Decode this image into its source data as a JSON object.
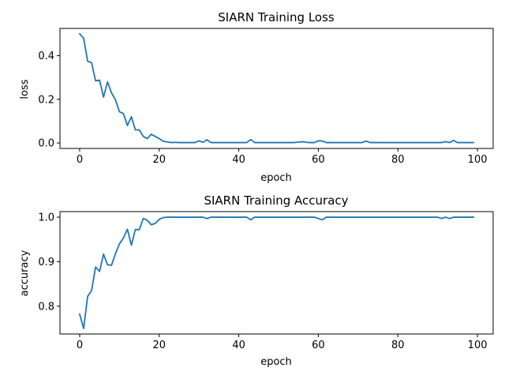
{
  "chart_data": [
    {
      "type": "line",
      "title": "SIARN Training Loss",
      "xlabel": "epoch",
      "ylabel": "loss",
      "xlim": [
        -4.95,
        103.95
      ],
      "ylim": [
        -0.025,
        0.525
      ],
      "xticks": [
        0,
        20,
        40,
        60,
        80,
        100
      ],
      "xtick_labels": [
        "0",
        "20",
        "40",
        "60",
        "80",
        "100"
      ],
      "yticks": [
        0.0,
        0.2,
        0.4
      ],
      "ytick_labels": [
        "0.0",
        "0.2",
        "0.4"
      ],
      "grid": false,
      "series": [
        {
          "color": "#1f77b4",
          "x": [
            0,
            1,
            2,
            3,
            4,
            5,
            6,
            7,
            8,
            9,
            10,
            11,
            12,
            13,
            14,
            15,
            16,
            17,
            18,
            19,
            20,
            21,
            22,
            23,
            24,
            25,
            26,
            27,
            28,
            29,
            30,
            31,
            32,
            33,
            34,
            35,
            36,
            37,
            38,
            39,
            40,
            41,
            42,
            43,
            44,
            45,
            46,
            47,
            48,
            49,
            50,
            51,
            52,
            53,
            54,
            55,
            56,
            57,
            58,
            59,
            60,
            61,
            62,
            63,
            64,
            65,
            66,
            67,
            68,
            69,
            70,
            71,
            72,
            73,
            74,
            75,
            76,
            77,
            78,
            79,
            80,
            81,
            82,
            83,
            84,
            85,
            86,
            87,
            88,
            89,
            90,
            91,
            92,
            93,
            94,
            95,
            96,
            97,
            98,
            99
          ],
          "y": [
            0.5,
            0.48,
            0.375,
            0.368,
            0.285,
            0.288,
            0.21,
            0.28,
            0.23,
            0.198,
            0.143,
            0.135,
            0.08,
            0.12,
            0.06,
            0.06,
            0.03,
            0.02,
            0.04,
            0.03,
            0.02,
            0.008,
            0.005,
            0.002,
            0.003,
            0.002,
            0.002,
            0.002,
            0.002,
            0.002,
            0.01,
            0.003,
            0.015,
            0.002,
            0.002,
            0.002,
            0.002,
            0.002,
            0.002,
            0.002,
            0.002,
            0.002,
            0.002,
            0.016,
            0.002,
            0.002,
            0.002,
            0.002,
            0.002,
            0.002,
            0.002,
            0.002,
            0.002,
            0.002,
            0.002,
            0.004,
            0.006,
            0.003,
            0.002,
            0.002,
            0.01,
            0.009,
            0.002,
            0.002,
            0.002,
            0.002,
            0.002,
            0.002,
            0.002,
            0.002,
            0.002,
            0.002,
            0.009,
            0.002,
            0.002,
            0.002,
            0.002,
            0.002,
            0.002,
            0.002,
            0.002,
            0.002,
            0.002,
            0.002,
            0.002,
            0.002,
            0.002,
            0.002,
            0.002,
            0.002,
            0.002,
            0.002,
            0.006,
            0.002,
            0.012,
            0.002,
            0.002,
            0.002,
            0.002,
            0.002
          ]
        }
      ]
    },
    {
      "type": "line",
      "title": "SIARN Training Accuracy",
      "xlabel": "epoch",
      "ylabel": "accuracy",
      "xlim": [
        -4.95,
        103.95
      ],
      "ylim": [
        0.7375,
        1.0125
      ],
      "xticks": [
        0,
        20,
        40,
        60,
        80,
        100
      ],
      "xtick_labels": [
        "0",
        "20",
        "40",
        "60",
        "80",
        "100"
      ],
      "yticks": [
        0.8,
        0.9,
        1.0
      ],
      "ytick_labels": [
        "0.8",
        "0.9",
        "1.0"
      ],
      "grid": false,
      "series": [
        {
          "color": "#1f77b4",
          "x": [
            0,
            1,
            2,
            3,
            4,
            5,
            6,
            7,
            8,
            9,
            10,
            11,
            12,
            13,
            14,
            15,
            16,
            17,
            18,
            19,
            20,
            21,
            22,
            23,
            24,
            25,
            26,
            27,
            28,
            29,
            30,
            31,
            32,
            33,
            34,
            35,
            36,
            37,
            38,
            39,
            40,
            41,
            42,
            43,
            44,
            45,
            46,
            47,
            48,
            49,
            50,
            51,
            52,
            53,
            54,
            55,
            56,
            57,
            58,
            59,
            60,
            61,
            62,
            63,
            64,
            65,
            66,
            67,
            68,
            69,
            70,
            71,
            72,
            73,
            74,
            75,
            76,
            77,
            78,
            79,
            80,
            81,
            82,
            83,
            84,
            85,
            86,
            87,
            88,
            89,
            90,
            91,
            92,
            93,
            94,
            95,
            96,
            97,
            98,
            99
          ],
          "y": [
            0.782,
            0.75,
            0.822,
            0.835,
            0.888,
            0.878,
            0.917,
            0.893,
            0.892,
            0.918,
            0.94,
            0.953,
            0.973,
            0.937,
            0.972,
            0.972,
            0.997,
            0.993,
            0.983,
            0.986,
            0.995,
            0.999,
            1.0,
            1.0,
            1.0,
            1.0,
            1.0,
            1.0,
            1.0,
            1.0,
            1.0,
            1.0,
            0.997,
            1.0,
            1.0,
            1.0,
            1.0,
            1.0,
            1.0,
            1.0,
            1.0,
            1.0,
            1.0,
            0.994,
            1.0,
            1.0,
            1.0,
            1.0,
            1.0,
            1.0,
            1.0,
            1.0,
            1.0,
            1.0,
            1.0,
            1.0,
            1.0,
            1.0,
            1.0,
            1.0,
            0.997,
            0.994,
            1.0,
            1.0,
            1.0,
            1.0,
            1.0,
            1.0,
            1.0,
            1.0,
            1.0,
            1.0,
            1.0,
            1.0,
            1.0,
            1.0,
            1.0,
            1.0,
            1.0,
            1.0,
            1.0,
            1.0,
            1.0,
            1.0,
            1.0,
            1.0,
            1.0,
            1.0,
            1.0,
            1.0,
            1.0,
            0.997,
            1.0,
            0.997,
            1.0,
            1.0,
            1.0,
            1.0,
            1.0,
            1.0
          ]
        }
      ]
    }
  ]
}
